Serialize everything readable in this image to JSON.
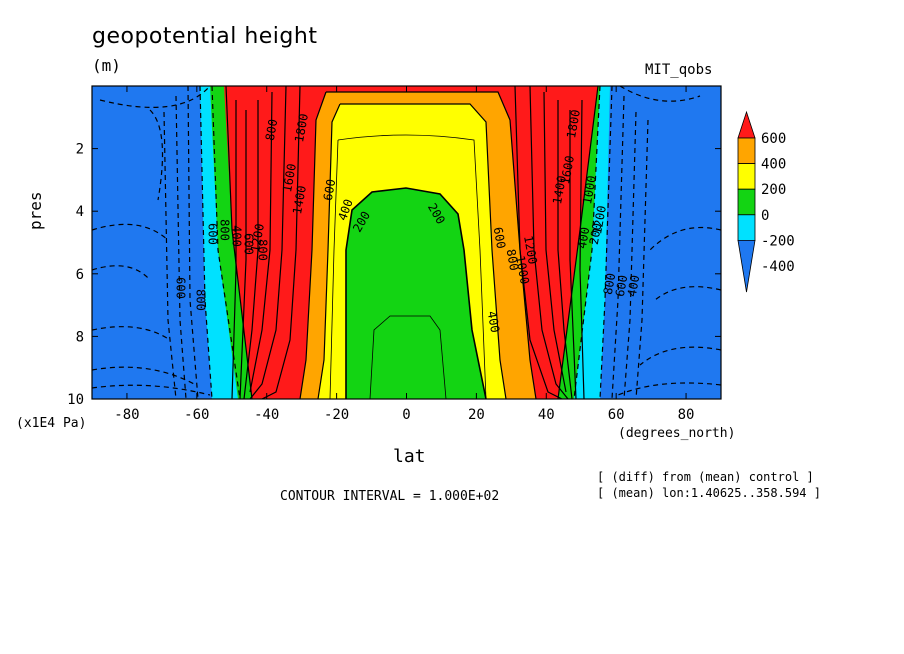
{
  "title": "geopotential height",
  "units": "(m)",
  "model": "MIT_qobs",
  "notes": [
    "[ (diff) from (mean) control ]",
    "[ (mean) lon:1.40625..358.594 ]"
  ],
  "contour_interval": "CONTOUR INTERVAL = 1.000E+02",
  "colors": {
    "neg_strong": "#1f78f0",
    "neg": "#00e1ff",
    "zero": "#13d413",
    "pos_low": "#ffff00",
    "pos_mid": "#ffa500",
    "pos_high": "#ff1a1a"
  },
  "chart_data": {
    "type": "heatmap",
    "title": "geopotential height",
    "xlabel": "lat",
    "xunit": "(degrees_north)",
    "ylabel": "pres",
    "yunit": "(x1E4 Pa)",
    "xlim": [
      -90,
      90
    ],
    "ylim": [
      10,
      0
    ],
    "x_ticks": [
      "-80",
      "-60",
      "-40",
      "-20",
      "0",
      "20",
      "40",
      "60",
      "80"
    ],
    "y_ticks": [
      "2",
      "4",
      "6",
      "8",
      "10"
    ],
    "colorbar": {
      "levels": [
        "600",
        "400",
        "200",
        "0",
        "-200",
        "-400"
      ],
      "colors": [
        "#ff1a1a",
        "#ffa500",
        "#ffff00",
        "#13d413",
        "#00e1ff",
        "#1f78f0"
      ]
    },
    "contour_labels": [
      "1800",
      "1600",
      "1400",
      "1200",
      "800",
      "600",
      "400",
      "200",
      "200",
      "400",
      "600",
      "800",
      "1000",
      "1200",
      "1400",
      "1600",
      "1800",
      "400",
      "200",
      "800",
      "600",
      "400",
      "600",
      "800",
      "600",
      "800",
      "400",
      "600",
      "800",
      "1000",
      "1200"
    ]
  }
}
